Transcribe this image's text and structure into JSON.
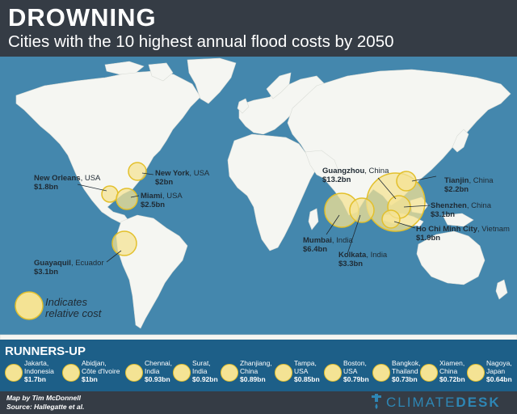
{
  "header": {
    "title": "DROWNING",
    "subtitle": "Cities with the 10 highest annual flood costs by 2050"
  },
  "map": {
    "ocean_color": "#4487ad",
    "land_color": "#f5f6f2",
    "bubble_fill": "#f4e394",
    "bubble_stroke": "#e3c02c",
    "cities": [
      {
        "city": "New York",
        "country": "USA",
        "cost": "$2bn"
      },
      {
        "city": "New Orleans",
        "country": "USA",
        "cost": "$1.8bn"
      },
      {
        "city": "Miami",
        "country": "USA",
        "cost": "$2.5bn"
      },
      {
        "city": "Guayaquil",
        "country": "Ecuador",
        "cost": "$3.1bn"
      },
      {
        "city": "Guangzhou",
        "country": "China",
        "cost": "$13.2bn"
      },
      {
        "city": "Tianjin",
        "country": "China",
        "cost": "$2.2bn"
      },
      {
        "city": "Shenzhen",
        "country": "China",
        "cost": "$3.1bn"
      },
      {
        "city": "Ho Chi Minh City",
        "country": "Vietnam",
        "cost": "$1.9bn"
      },
      {
        "city": "Mumbai",
        "country": "India",
        "cost": "$6.4bn"
      },
      {
        "city": "Kolkata",
        "country": "India",
        "cost": "$3.3bn"
      }
    ],
    "legend": {
      "line1": "Indicates",
      "line2": "relative cost"
    }
  },
  "runners_up": {
    "title": "RUNNERS-UP",
    "items": [
      {
        "city": "Jakarta,",
        "country": "Indonesia",
        "cost": "$1.7bn"
      },
      {
        "city": "Abidjan,",
        "country": "Côte d'Ivoire",
        "cost": "$1bn"
      },
      {
        "city": "Chennai,",
        "country": "India",
        "cost": "$0.93bn"
      },
      {
        "city": "Surat,",
        "country": "India",
        "cost": "$0.92bn"
      },
      {
        "city": "Zhanjiang,",
        "country": "China",
        "cost": "$0.89bn"
      },
      {
        "city": "Tampa,",
        "country": "USA",
        "cost": "$0.85bn"
      },
      {
        "city": "Boston,",
        "country": "USA",
        "cost": "$0.79bn"
      },
      {
        "city": "Bangkok,",
        "country": "Thailand",
        "cost": "$0.73bn"
      },
      {
        "city": "Xiamen,",
        "country": "China",
        "cost": "$0.72bn"
      },
      {
        "city": "Nagoya,",
        "country": "Japan",
        "cost": "$0.64bn"
      }
    ]
  },
  "footer": {
    "map_by": "Map by Tim McDonnell",
    "source": "Source: Hallegatte et al.",
    "brand_left": "CLIMATE",
    "brand_right": "DESK",
    "brand_icon": "faucet-icon"
  }
}
